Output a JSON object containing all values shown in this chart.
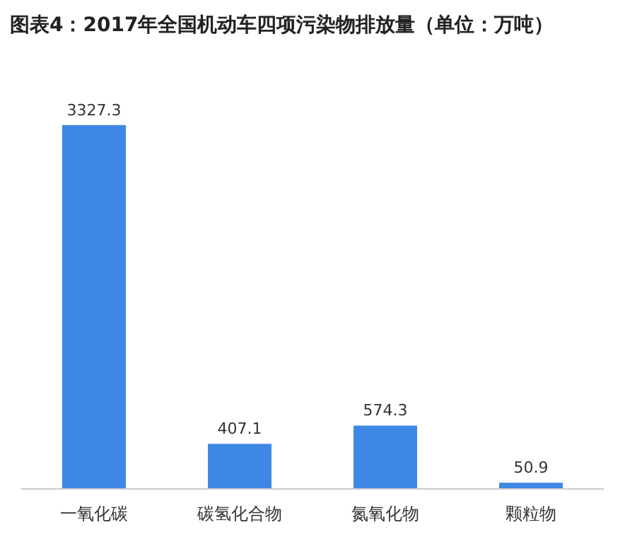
{
  "chart_data": {
    "type": "bar",
    "title": "图表4：2017年全国机动车四项污染物排放量（单位：万吨）",
    "categories": [
      "一氧化碳",
      "碳氢化合物",
      "氮氧化物",
      "颗粒物"
    ],
    "values": [
      3327.3,
      407.1,
      574.3,
      50.9
    ],
    "color": "#3f87e4",
    "data_labels": true
  }
}
